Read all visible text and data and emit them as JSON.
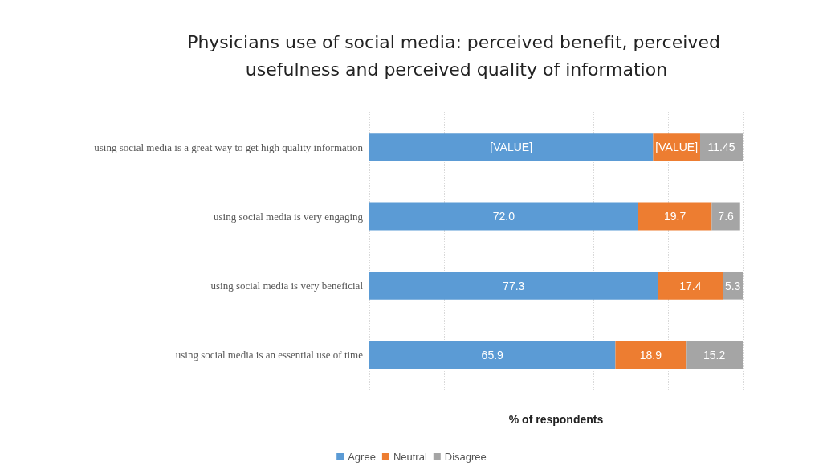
{
  "chart_data": {
    "type": "bar",
    "orientation": "horizontal",
    "stacked": true,
    "title": "Physicians use of social media: perceived benefit, perceived usefulness and perceived quality of information",
    "xlabel": "% of respondents",
    "categories": [
      "using social media is a great way to get high quality information",
      "using social media is very engaging",
      "using social media is very beneficial",
      "using social media is an essential use of time"
    ],
    "series": [
      {
        "name": "Agree",
        "color": "#5b9bd5",
        "values": [
          76.0,
          72.0,
          77.3,
          65.9
        ],
        "value_labels": [
          "[VALUE]",
          "72.0",
          "77.3",
          "65.9"
        ]
      },
      {
        "name": "Neutral",
        "color": "#ed7d31",
        "values": [
          12.6,
          19.7,
          17.4,
          18.9
        ],
        "value_labels": [
          "[VALUE]",
          "19.7",
          "17.4",
          "18.9"
        ]
      },
      {
        "name": "Disagree",
        "color": "#a5a5a5",
        "values": [
          11.45,
          7.6,
          5.3,
          15.2
        ],
        "value_labels": [
          "11.45",
          "7.6",
          "5.3",
          "15.2"
        ]
      }
    ],
    "xlim": [
      0,
      100
    ],
    "xticks": [
      {
        "value": 0,
        "label": null
      },
      {
        "value": 20,
        "label": null
      },
      {
        "value": 40,
        "label": null
      },
      {
        "value": 60,
        "label": null
      },
      {
        "value": 80,
        "label": null
      },
      {
        "value": 100,
        "label": null
      }
    ],
    "tick_labels": false,
    "grid": "x",
    "legend": "bottom"
  }
}
